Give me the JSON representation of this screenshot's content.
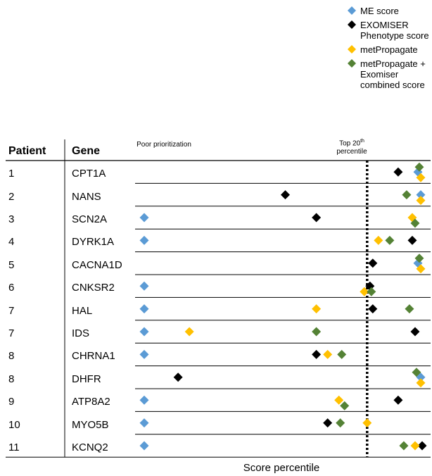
{
  "chart_data": {
    "type": "scatter",
    "header": {
      "patient": "Patient",
      "gene": "Gene"
    },
    "annotation_left": "Poor prioritization",
    "annotation_threshold": {
      "text": "Top 20",
      "sup": "th",
      "text2": "percentile",
      "value": 80
    },
    "xlabel": "Score percentile",
    "xlim": [
      0,
      100
    ],
    "legend": [
      {
        "name": "ME score",
        "color": "#5b9bd5"
      },
      {
        "name": "EXOMISER Phenotype score",
        "color": "#000000"
      },
      {
        "name": "metPropagate",
        "color": "#ffc000"
      },
      {
        "name": "metPropagate + Exomiser combined score",
        "color": "#548235"
      }
    ],
    "rows": [
      {
        "patient": "1",
        "gene": "CPT1A",
        "me": 98,
        "exomiser": 91,
        "metprop": 99,
        "combined": 98.5
      },
      {
        "patient": "2",
        "gene": "NANS",
        "me": 99,
        "exomiser": 51,
        "metprop": 99,
        "combined": 94
      },
      {
        "patient": "3",
        "gene": "SCN2A",
        "me": 1,
        "exomiser": 62,
        "metprop": 96,
        "combined": 97
      },
      {
        "patient": "4",
        "gene": "DYRK1A",
        "me": 1,
        "exomiser": 96,
        "metprop": 84,
        "combined": 88
      },
      {
        "patient": "5",
        "gene": "CACNA1D",
        "me": 98,
        "exomiser": 82,
        "metprop": 99,
        "combined": 98.5
      },
      {
        "patient": "6",
        "gene": "CNKSR2",
        "me": 1,
        "exomiser": 81,
        "metprop": 79,
        "combined": 81.5
      },
      {
        "patient": "7",
        "gene": "HAL",
        "me": 1,
        "exomiser": 82,
        "metprop": 62,
        "combined": 95
      },
      {
        "patient": "7",
        "gene": "IDS",
        "me": 1,
        "exomiser": 97,
        "metprop": 17,
        "combined": 62
      },
      {
        "patient": "8",
        "gene": "CHRNA1",
        "me": 1,
        "exomiser": 62,
        "metprop": 66,
        "combined": 71
      },
      {
        "patient": "8",
        "gene": "DHFR",
        "me": 99,
        "exomiser": 13,
        "metprop": 99,
        "combined": 97.5
      },
      {
        "patient": "9",
        "gene": "ATP8A2",
        "me": 1,
        "exomiser": 91,
        "metprop": 70,
        "combined": 72
      },
      {
        "patient": "10",
        "gene": "MYO5B",
        "me": 1,
        "exomiser": 66,
        "metprop": 80,
        "combined": 70.5
      },
      {
        "patient": "11",
        "gene": "KCNQ2",
        "me": 1,
        "exomiser": 99.5,
        "metprop": 97,
        "combined": 93
      }
    ]
  }
}
